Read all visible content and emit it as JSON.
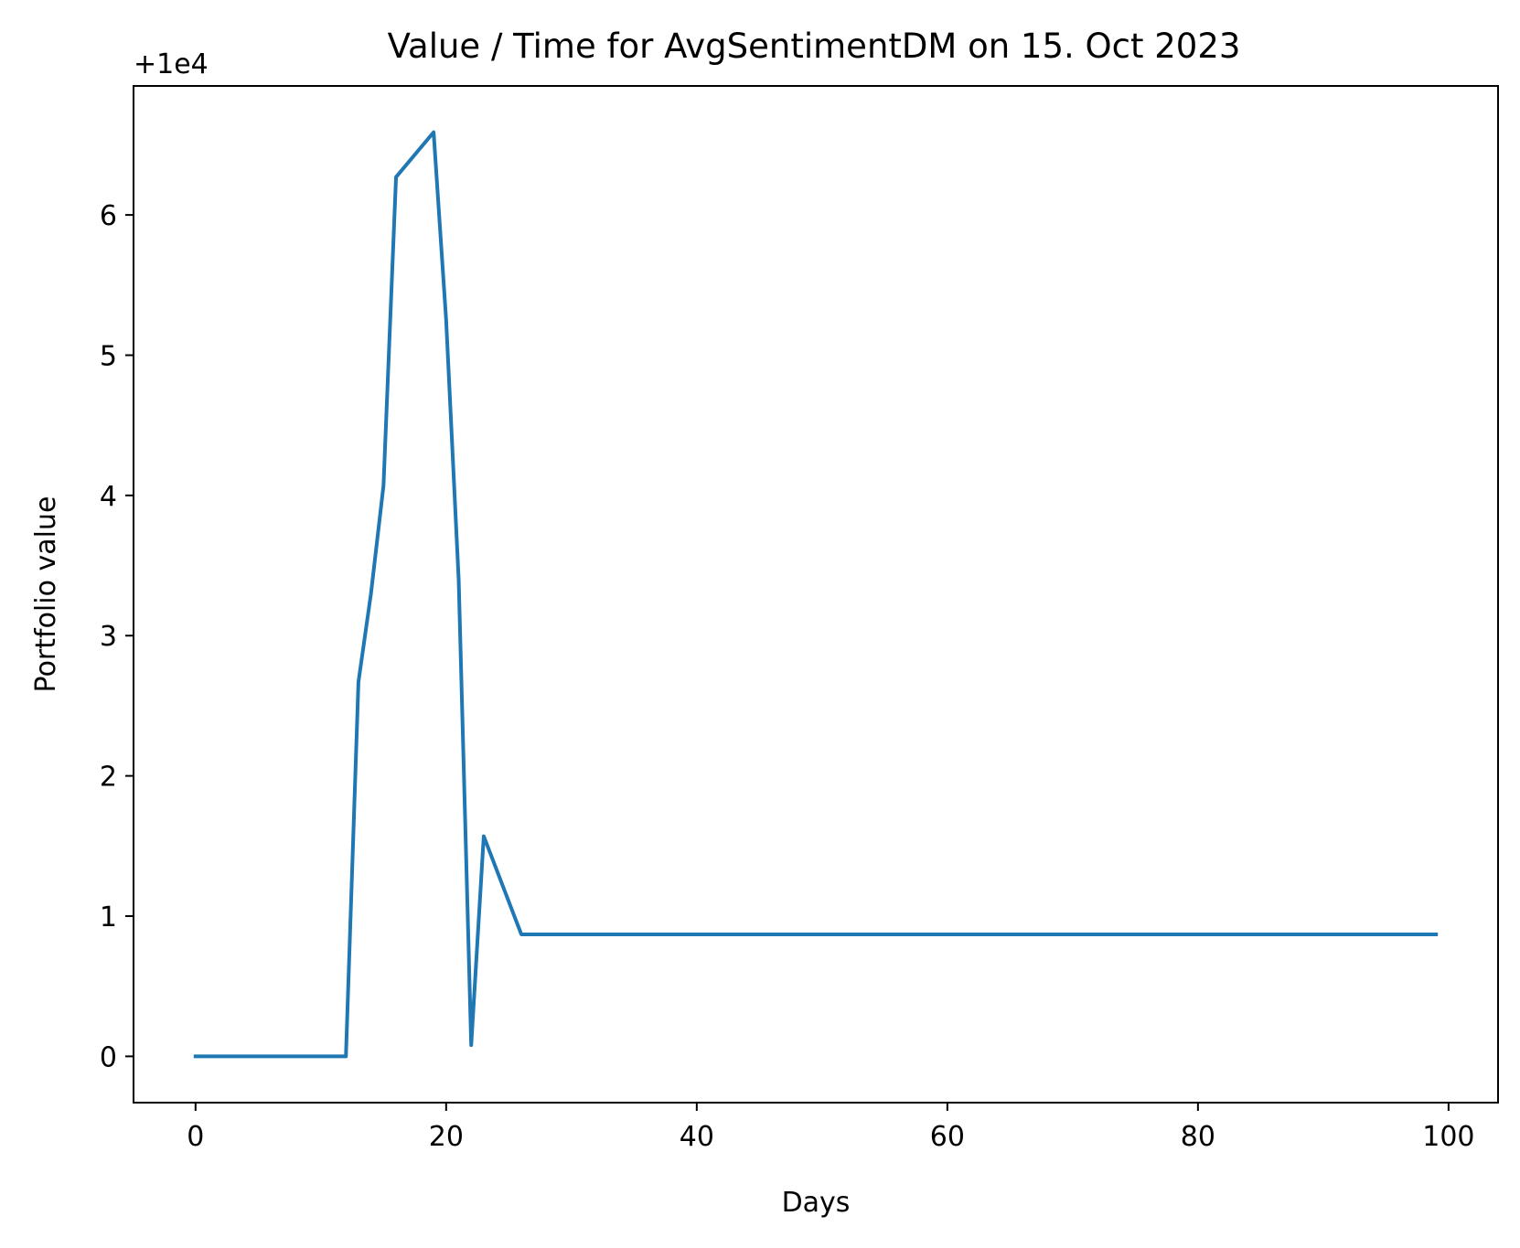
{
  "chart_data": {
    "type": "line",
    "title": "Value / Time for AvgSentimentDM on 15. Oct 2023",
    "xlabel": "Days",
    "ylabel": "Portfolio value",
    "offset_label": "+1e4",
    "y_offset": 10000,
    "xlim": [
      -4.95,
      103.95
    ],
    "ylim": [
      9999.67,
      10006.92
    ],
    "x_ticks": [
      0,
      20,
      40,
      60,
      80,
      100
    ],
    "y_ticks": [
      10000,
      10001,
      10002,
      10003,
      10004,
      10005,
      10006
    ],
    "grid": false,
    "legend": "none",
    "series": [
      {
        "color": "#1f77b4",
        "points": [
          [
            0,
            10000.0
          ],
          [
            12,
            10000.0
          ],
          [
            13,
            10002.67
          ],
          [
            14,
            10003.3
          ],
          [
            15,
            10004.07
          ],
          [
            16,
            10006.27
          ],
          [
            19,
            10006.59
          ],
          [
            20,
            10005.25
          ],
          [
            21,
            10003.4
          ],
          [
            22,
            10000.08
          ],
          [
            23,
            10001.57
          ],
          [
            26,
            10000.87
          ],
          [
            99,
            10000.87
          ]
        ]
      }
    ]
  }
}
